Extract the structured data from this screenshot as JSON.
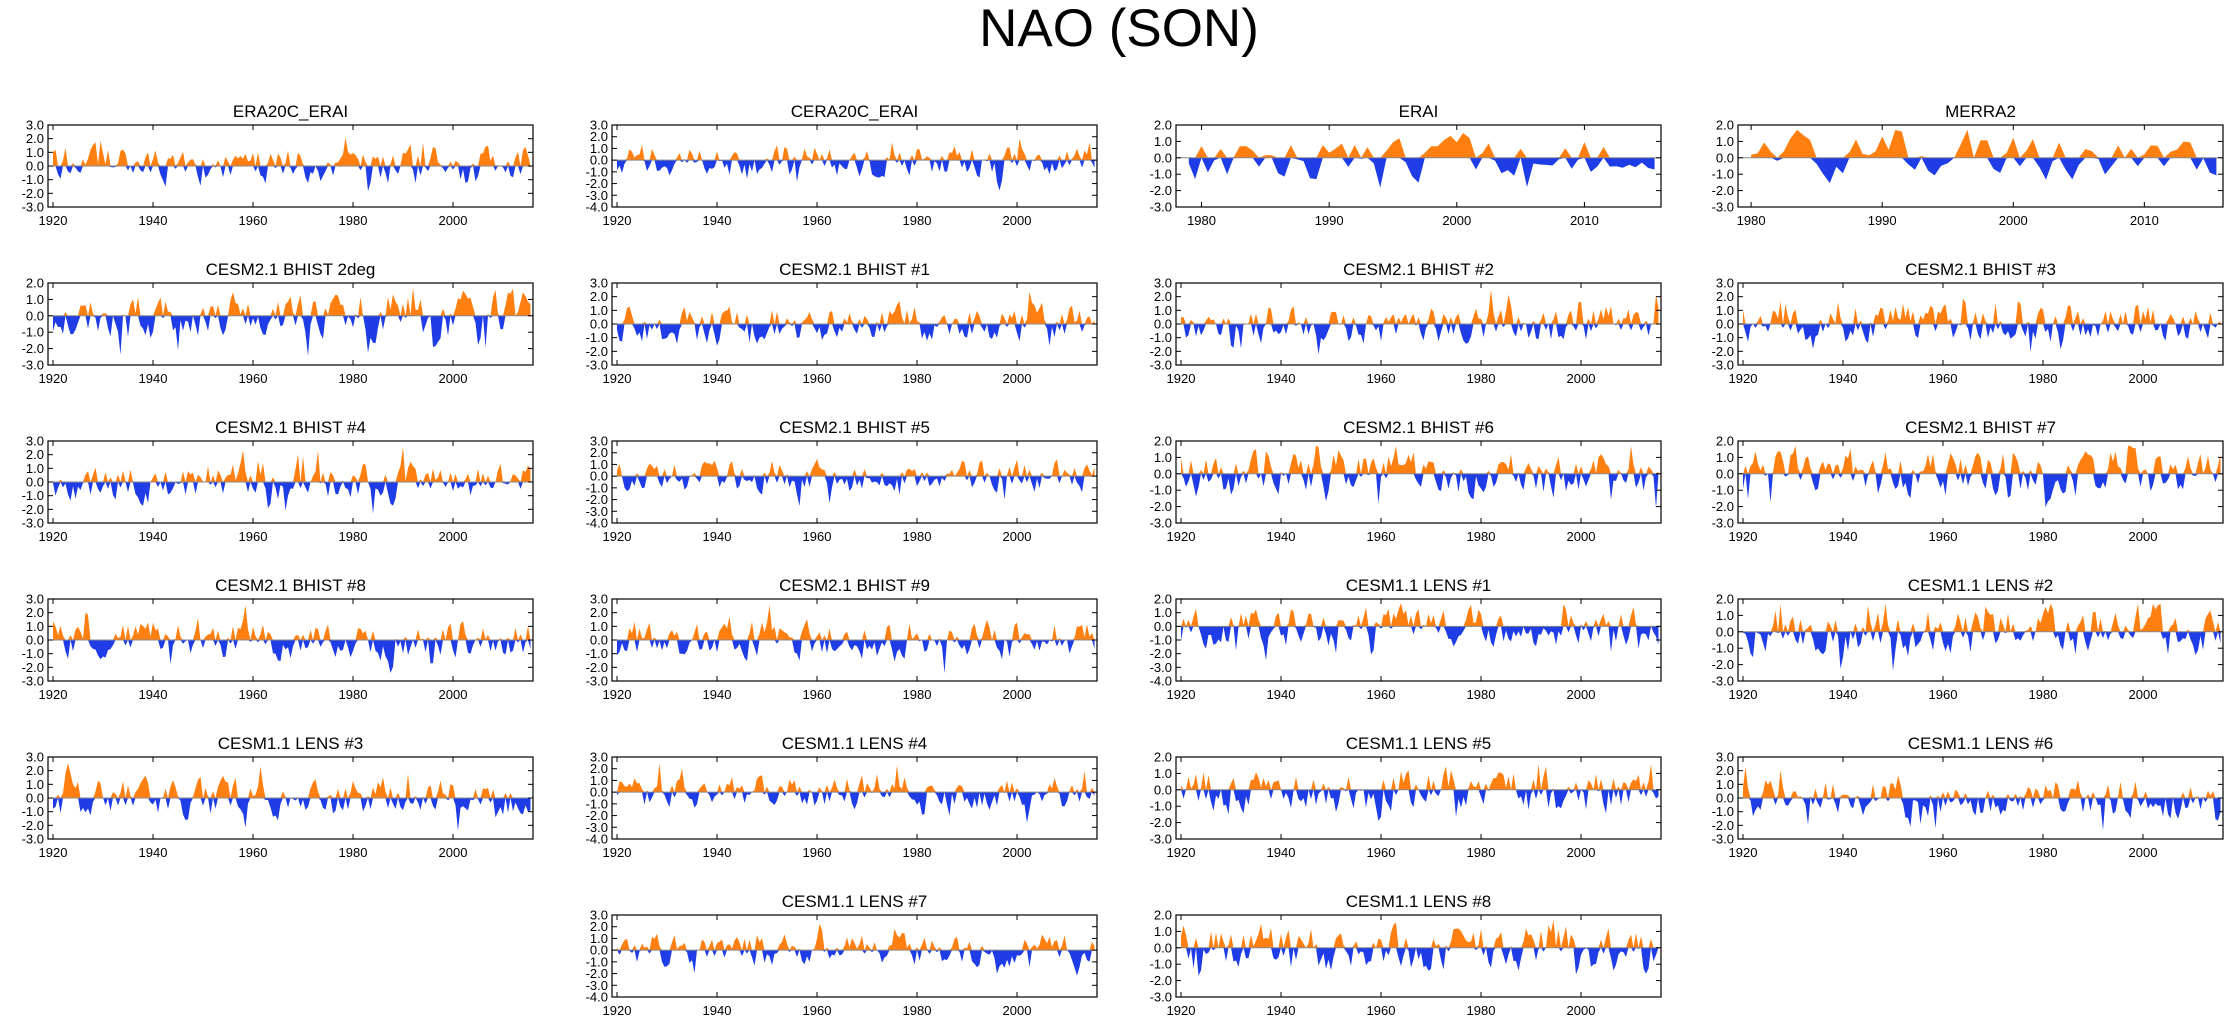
{
  "title": "NAO (SON)",
  "colors": {
    "positive": "#FF8010",
    "negative": "#1F3DE6",
    "axis": "#000000",
    "zero_line": "#888888"
  },
  "chart_data": [
    {
      "type": "area",
      "title": "ERA20C_ERAI",
      "x_ticks": [
        1920,
        1940,
        1960,
        1980,
        2000
      ],
      "y_ticks": [
        "3.0",
        "2.0",
        "1.0",
        "0.0",
        "-1.0",
        "-2.0",
        "-3.0"
      ],
      "ylim": [
        -3,
        3
      ],
      "xlim": [
        1919,
        2016
      ],
      "seed": 11
    },
    {
      "type": "area",
      "title": "CERA20C_ERAI",
      "x_ticks": [
        1920,
        1940,
        1960,
        1980,
        2000
      ],
      "y_ticks": [
        "3.0",
        "2.0",
        "1.0",
        "0.0",
        "-1.0",
        "-2.0",
        "-3.0",
        "-4.0"
      ],
      "ylim": [
        -4,
        3
      ],
      "xlim": [
        1919,
        2016
      ],
      "seed": 12
    },
    {
      "type": "area",
      "title": "ERAI",
      "x_ticks": [
        1980,
        1990,
        2000,
        2010
      ],
      "y_ticks": [
        "2.0",
        "1.0",
        "0.0",
        "-1.0",
        "-2.0",
        "-3.0"
      ],
      "ylim": [
        -3,
        2
      ],
      "xlim": [
        1978,
        2016
      ],
      "seed": 13
    },
    {
      "type": "area",
      "title": "MERRA2",
      "x_ticks": [
        1980,
        1990,
        2000,
        2010
      ],
      "y_ticks": [
        "2.0",
        "1.0",
        "0.0",
        "-1.0",
        "-2.0",
        "-3.0"
      ],
      "ylim": [
        -3,
        2
      ],
      "xlim": [
        1979,
        2016
      ],
      "seed": 14
    },
    {
      "type": "area",
      "title": "CESM2.1 BHIST 2deg",
      "x_ticks": [
        1920,
        1940,
        1960,
        1980,
        2000
      ],
      "y_ticks": [
        "2.0",
        "1.0",
        "0.0",
        "-1.0",
        "-2.0",
        "-3.0"
      ],
      "ylim": [
        -3,
        2
      ],
      "xlim": [
        1919,
        2016
      ],
      "seed": 21
    },
    {
      "type": "area",
      "title": "CESM2.1 BHIST #1",
      "x_ticks": [
        1920,
        1940,
        1960,
        1980,
        2000
      ],
      "y_ticks": [
        "3.0",
        "2.0",
        "1.0",
        "0.0",
        "-1.0",
        "-2.0",
        "-3.0"
      ],
      "ylim": [
        -3,
        3
      ],
      "xlim": [
        1919,
        2016
      ],
      "seed": 22
    },
    {
      "type": "area",
      "title": "CESM2.1 BHIST #2",
      "x_ticks": [
        1920,
        1940,
        1960,
        1980,
        2000
      ],
      "y_ticks": [
        "3.0",
        "2.0",
        "1.0",
        "0.0",
        "-1.0",
        "-2.0",
        "-3.0"
      ],
      "ylim": [
        -3,
        3
      ],
      "xlim": [
        1919,
        2016
      ],
      "seed": 23
    },
    {
      "type": "area",
      "title": "CESM2.1 BHIST #3",
      "x_ticks": [
        1920,
        1940,
        1960,
        1980,
        2000
      ],
      "y_ticks": [
        "3.0",
        "2.0",
        "1.0",
        "0.0",
        "-1.0",
        "-2.0",
        "-3.0"
      ],
      "ylim": [
        -3,
        3
      ],
      "xlim": [
        1919,
        2016
      ],
      "seed": 24
    },
    {
      "type": "area",
      "title": "CESM2.1 BHIST #4",
      "x_ticks": [
        1920,
        1940,
        1960,
        1980,
        2000
      ],
      "y_ticks": [
        "3.0",
        "2.0",
        "1.0",
        "0.0",
        "-1.0",
        "-2.0",
        "-3.0"
      ],
      "ylim": [
        -3,
        3
      ],
      "xlim": [
        1919,
        2016
      ],
      "seed": 31
    },
    {
      "type": "area",
      "title": "CESM2.1 BHIST #5",
      "x_ticks": [
        1920,
        1940,
        1960,
        1980,
        2000
      ],
      "y_ticks": [
        "3.0",
        "2.0",
        "1.0",
        "0.0",
        "-1.0",
        "-2.0",
        "-3.0",
        "-4.0"
      ],
      "ylim": [
        -4,
        3
      ],
      "xlim": [
        1919,
        2016
      ],
      "seed": 32
    },
    {
      "type": "area",
      "title": "CESM2.1 BHIST #6",
      "x_ticks": [
        1920,
        1940,
        1960,
        1980,
        2000
      ],
      "y_ticks": [
        "2.0",
        "1.0",
        "0.0",
        "-1.0",
        "-2.0",
        "-3.0"
      ],
      "ylim": [
        -3,
        2
      ],
      "xlim": [
        1919,
        2016
      ],
      "seed": 33
    },
    {
      "type": "area",
      "title": "CESM2.1 BHIST #7",
      "x_ticks": [
        1920,
        1940,
        1960,
        1980,
        2000
      ],
      "y_ticks": [
        "2.0",
        "1.0",
        "0.0",
        "-1.0",
        "-2.0",
        "-3.0"
      ],
      "ylim": [
        -3,
        2
      ],
      "xlim": [
        1919,
        2016
      ],
      "seed": 34
    },
    {
      "type": "area",
      "title": "CESM2.1 BHIST #8",
      "x_ticks": [
        1920,
        1940,
        1960,
        1980,
        2000
      ],
      "y_ticks": [
        "3.0",
        "2.0",
        "1.0",
        "0.0",
        "-1.0",
        "-2.0",
        "-3.0"
      ],
      "ylim": [
        -3,
        3
      ],
      "xlim": [
        1919,
        2016
      ],
      "seed": 41
    },
    {
      "type": "area",
      "title": "CESM2.1 BHIST #9",
      "x_ticks": [
        1920,
        1940,
        1960,
        1980,
        2000
      ],
      "y_ticks": [
        "3.0",
        "2.0",
        "1.0",
        "0.0",
        "-1.0",
        "-2.0",
        "-3.0"
      ],
      "ylim": [
        -3,
        3
      ],
      "xlim": [
        1919,
        2016
      ],
      "seed": 42
    },
    {
      "type": "area",
      "title": "CESM1.1 LENS #1",
      "x_ticks": [
        1920,
        1940,
        1960,
        1980,
        2000
      ],
      "y_ticks": [
        "2.0",
        "1.0",
        "0.0",
        "-1.0",
        "-2.0",
        "-3.0",
        "-4.0"
      ],
      "ylim": [
        -4,
        2
      ],
      "xlim": [
        1919,
        2016
      ],
      "seed": 43
    },
    {
      "type": "area",
      "title": "CESM1.1 LENS #2",
      "x_ticks": [
        1920,
        1940,
        1960,
        1980,
        2000
      ],
      "y_ticks": [
        "2.0",
        "1.0",
        "0.0",
        "-1.0",
        "-2.0",
        "-3.0"
      ],
      "ylim": [
        -3,
        2
      ],
      "xlim": [
        1919,
        2016
      ],
      "seed": 44
    },
    {
      "type": "area",
      "title": "CESM1.1 LENS #3",
      "x_ticks": [
        1920,
        1940,
        1960,
        1980,
        2000
      ],
      "y_ticks": [
        "3.0",
        "2.0",
        "1.0",
        "0.0",
        "-1.0",
        "-2.0",
        "-3.0"
      ],
      "ylim": [
        -3,
        3
      ],
      "xlim": [
        1919,
        2016
      ],
      "seed": 51
    },
    {
      "type": "area",
      "title": "CESM1.1 LENS #4",
      "x_ticks": [
        1920,
        1940,
        1960,
        1980,
        2000
      ],
      "y_ticks": [
        "3.0",
        "2.0",
        "1.0",
        "0.0",
        "-1.0",
        "-2.0",
        "-3.0",
        "-4.0"
      ],
      "ylim": [
        -4,
        3
      ],
      "xlim": [
        1919,
        2016
      ],
      "seed": 52
    },
    {
      "type": "area",
      "title": "CESM1.1 LENS #5",
      "x_ticks": [
        1920,
        1940,
        1960,
        1980,
        2000
      ],
      "y_ticks": [
        "2.0",
        "1.0",
        "0.0",
        "-1.0",
        "-2.0",
        "-3.0"
      ],
      "ylim": [
        -3,
        2
      ],
      "xlim": [
        1919,
        2016
      ],
      "seed": 53
    },
    {
      "type": "area",
      "title": "CESM1.1 LENS #6",
      "x_ticks": [
        1920,
        1940,
        1960,
        1980,
        2000
      ],
      "y_ticks": [
        "3.0",
        "2.0",
        "1.0",
        "0.0",
        "-1.0",
        "-2.0",
        "-3.0"
      ],
      "ylim": [
        -3,
        3
      ],
      "xlim": [
        1919,
        2016
      ],
      "seed": 54
    },
    {
      "type": "area",
      "title": "CESM1.1 LENS #7",
      "x_ticks": [
        1920,
        1940,
        1960,
        1980,
        2000
      ],
      "y_ticks": [
        "3.0",
        "2.0",
        "1.0",
        "0.0",
        "-1.0",
        "-2.0",
        "-3.0",
        "-4.0"
      ],
      "ylim": [
        -4,
        3
      ],
      "xlim": [
        1919,
        2016
      ],
      "seed": 62
    },
    {
      "type": "area",
      "title": "CESM1.1 LENS #8",
      "x_ticks": [
        1920,
        1940,
        1960,
        1980,
        2000
      ],
      "y_ticks": [
        "2.0",
        "1.0",
        "0.0",
        "-1.0",
        "-2.0",
        "-3.0"
      ],
      "ylim": [
        -3,
        2
      ],
      "xlim": [
        1919,
        2016
      ],
      "seed": 63
    }
  ]
}
